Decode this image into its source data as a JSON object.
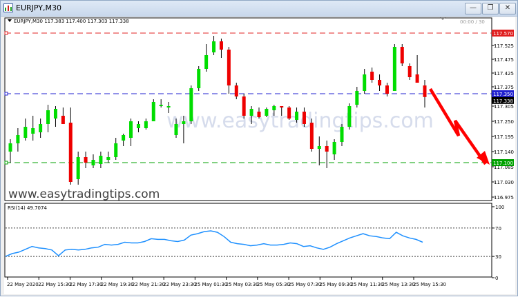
{
  "window": {
    "title": "EURJPY,M30",
    "minimize_glyph": "—",
    "restore_glyph": "❐",
    "close_glyph": "✕"
  },
  "main_chart": {
    "header": "EURJPY,M30  117.383 117.400 117.303 117.338",
    "watermark": "www.easytradingtips.com",
    "site_label": "www.easytradingtips.com",
    "countdown": "00:00 / 30",
    "lines": {
      "resistance_label": "117.570",
      "resistance_value": 117.57,
      "mid_label": "117.350",
      "mid_value": 117.35,
      "current_label": "117.338",
      "current_value": 117.338,
      "support_label": "117.100",
      "support_value": 117.1
    },
    "colors": {
      "bull": "#00dd00",
      "bear": "#ee0000",
      "resistance": "#e02020",
      "mid": "#2020d0",
      "support": "#00a000",
      "arrow": "#ff0000"
    }
  },
  "chart_data": [
    {
      "type": "candlestick",
      "title": "EURJPY,M30",
      "ylim": [
        116.975,
        117.6
      ],
      "y_ticks": [
        "117.570",
        "117.525",
        "117.475",
        "117.425",
        "117.375",
        "117.338",
        "117.305",
        "117.250",
        "117.195",
        "117.140",
        "117.085",
        "117.030",
        "116.975"
      ],
      "x_ticks": [
        "22 May 2020",
        "22 May 15:30",
        "22 May 17:30",
        "22 May 19:30",
        "22 May 21:30",
        "22 May 23:30",
        "25 May 01:30",
        "25 May 03:30",
        "25 May 05:30",
        "25 May 07:30",
        "25 May 09:30",
        "25 May 11:30",
        "25 May 13:30",
        "25 May 15:30"
      ],
      "candles": [
        {
          "o": 117.14,
          "h": 117.185,
          "l": 117.1,
          "c": 117.17
        },
        {
          "o": 117.17,
          "h": 117.225,
          "l": 117.14,
          "c": 117.2
        },
        {
          "o": 117.19,
          "h": 117.26,
          "l": 117.18,
          "c": 117.23
        },
        {
          "o": 117.205,
          "h": 117.27,
          "l": 117.18,
          "c": 117.225
        },
        {
          "o": 117.21,
          "h": 117.26,
          "l": 117.19,
          "c": 117.24
        },
        {
          "o": 117.24,
          "h": 117.31,
          "l": 117.21,
          "c": 117.29
        },
        {
          "o": 117.26,
          "h": 117.305,
          "l": 117.23,
          "c": 117.295
        },
        {
          "o": 117.27,
          "h": 117.3,
          "l": 117.24,
          "c": 117.24
        },
        {
          "o": 117.245,
          "h": 117.3,
          "l": 117.02,
          "c": 117.03
        },
        {
          "o": 117.04,
          "h": 117.14,
          "l": 117.02,
          "c": 117.12
        },
        {
          "o": 117.12,
          "h": 117.14,
          "l": 117.08,
          "c": 117.1
        },
        {
          "o": 117.09,
          "h": 117.13,
          "l": 117.08,
          "c": 117.11
        },
        {
          "o": 117.095,
          "h": 117.14,
          "l": 117.08,
          "c": 117.125
        },
        {
          "o": 117.11,
          "h": 117.14,
          "l": 117.1,
          "c": 117.12
        },
        {
          "o": 117.12,
          "h": 117.19,
          "l": 117.11,
          "c": 117.17
        },
        {
          "o": 117.18,
          "h": 117.205,
          "l": 117.16,
          "c": 117.2
        },
        {
          "o": 117.19,
          "h": 117.26,
          "l": 117.16,
          "c": 117.25
        },
        {
          "o": 117.225,
          "h": 117.25,
          "l": 117.21,
          "c": 117.24
        },
        {
          "o": 117.225,
          "h": 117.26,
          "l": 117.22,
          "c": 117.25
        },
        {
          "o": 117.25,
          "h": 117.33,
          "l": 117.25,
          "c": 117.32
        },
        {
          "o": 117.305,
          "h": 117.33,
          "l": 117.3,
          "c": 117.31
        },
        {
          "o": 117.3,
          "h": 117.32,
          "l": 117.28,
          "c": 117.305
        },
        {
          "o": 117.2,
          "h": 117.26,
          "l": 117.19,
          "c": 117.24
        },
        {
          "o": 117.24,
          "h": 117.27,
          "l": 117.17,
          "c": 117.25
        },
        {
          "o": 117.25,
          "h": 117.38,
          "l": 117.24,
          "c": 117.37
        },
        {
          "o": 117.37,
          "h": 117.45,
          "l": 117.36,
          "c": 117.44
        },
        {
          "o": 117.44,
          "h": 117.53,
          "l": 117.43,
          "c": 117.49
        },
        {
          "o": 117.5,
          "h": 117.56,
          "l": 117.49,
          "c": 117.54
        },
        {
          "o": 117.54,
          "h": 117.55,
          "l": 117.48,
          "c": 117.51
        },
        {
          "o": 117.51,
          "h": 117.52,
          "l": 117.35,
          "c": 117.38
        },
        {
          "o": 117.38,
          "h": 117.39,
          "l": 117.33,
          "c": 117.34
        },
        {
          "o": 117.34,
          "h": 117.35,
          "l": 117.26,
          "c": 117.27
        },
        {
          "o": 117.27,
          "h": 117.305,
          "l": 117.24,
          "c": 117.295
        },
        {
          "o": 117.285,
          "h": 117.3,
          "l": 117.26,
          "c": 117.265
        },
        {
          "o": 117.27,
          "h": 117.3,
          "l": 117.265,
          "c": 117.295
        },
        {
          "o": 117.29,
          "h": 117.31,
          "l": 117.27,
          "c": 117.305
        },
        {
          "o": 117.305,
          "h": 117.305,
          "l": 117.27,
          "c": 117.3
        },
        {
          "o": 117.3,
          "h": 117.305,
          "l": 117.255,
          "c": 117.26
        },
        {
          "o": 117.255,
          "h": 117.3,
          "l": 117.245,
          "c": 117.285
        },
        {
          "o": 117.285,
          "h": 117.3,
          "l": 117.23,
          "c": 117.24
        },
        {
          "o": 117.245,
          "h": 117.26,
          "l": 117.14,
          "c": 117.15
        },
        {
          "o": 117.15,
          "h": 117.195,
          "l": 117.09,
          "c": 117.16
        },
        {
          "o": 117.16,
          "h": 117.18,
          "l": 117.08,
          "c": 117.14
        },
        {
          "o": 117.13,
          "h": 117.185,
          "l": 117.11,
          "c": 117.175
        },
        {
          "o": 117.175,
          "h": 117.24,
          "l": 117.16,
          "c": 117.23
        },
        {
          "o": 117.23,
          "h": 117.315,
          "l": 117.22,
          "c": 117.305
        },
        {
          "o": 117.31,
          "h": 117.375,
          "l": 117.3,
          "c": 117.36
        },
        {
          "o": 117.36,
          "h": 117.44,
          "l": 117.35,
          "c": 117.42
        },
        {
          "o": 117.43,
          "h": 117.445,
          "l": 117.39,
          "c": 117.4
        },
        {
          "o": 117.4,
          "h": 117.42,
          "l": 117.36,
          "c": 117.38
        },
        {
          "o": 117.38,
          "h": 117.39,
          "l": 117.34,
          "c": 117.35
        },
        {
          "o": 117.36,
          "h": 117.53,
          "l": 117.36,
          "c": 117.52
        },
        {
          "o": 117.52,
          "h": 117.53,
          "l": 117.45,
          "c": 117.46
        },
        {
          "o": 117.45,
          "h": 117.46,
          "l": 117.4,
          "c": 117.41
        },
        {
          "o": 117.42,
          "h": 117.49,
          "l": 117.39,
          "c": 117.39
        },
        {
          "o": 117.38,
          "h": 117.4,
          "l": 117.3,
          "c": 117.338
        }
      ]
    },
    {
      "type": "line",
      "title": "RSI(14) 49.7074",
      "ylim": [
        0,
        100
      ],
      "y_ticks": [
        "100",
        "70",
        "30",
        "0"
      ],
      "levels": [
        70,
        30
      ],
      "series": [
        {
          "values": [
            30,
            34,
            36,
            40,
            44,
            42,
            41,
            39,
            31,
            39,
            40,
            39,
            40,
            42,
            43,
            47,
            46,
            47,
            50,
            49,
            49,
            51,
            55,
            54,
            54,
            52,
            51,
            53,
            60,
            62,
            65,
            66,
            64,
            58,
            50,
            48,
            47,
            45,
            46,
            48,
            46,
            46,
            47,
            49,
            48,
            44,
            45,
            42,
            40,
            43,
            48,
            52,
            56,
            59,
            62,
            59,
            58,
            56,
            55,
            64,
            59,
            56,
            54,
            50
          ]
        }
      ]
    }
  ]
}
